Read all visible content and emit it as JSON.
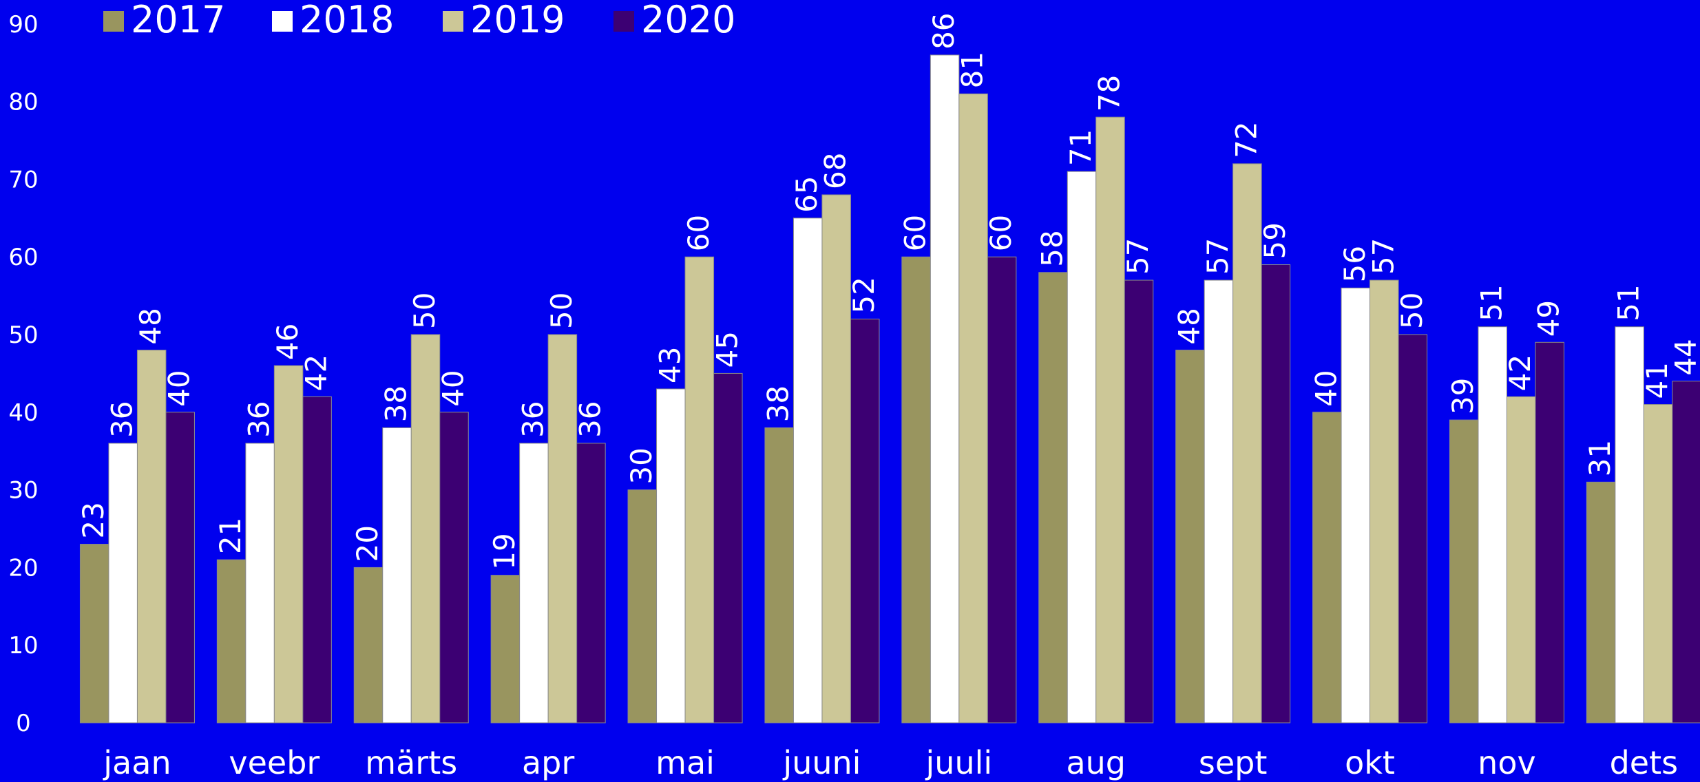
{
  "chart_data": {
    "type": "bar",
    "title": "",
    "xlabel": "",
    "ylabel": "",
    "ylim": [
      0,
      90
    ],
    "yticks": [
      0,
      10,
      20,
      30,
      40,
      50,
      60,
      70,
      80,
      90
    ],
    "grid": false,
    "legend_position": "top-left",
    "background": "#0000ee",
    "categories": [
      "jaan",
      "veebr",
      "märts",
      "apr",
      "mai",
      "juuni",
      "juuli",
      "aug",
      "sept",
      "okt",
      "nov",
      "dets"
    ],
    "series": [
      {
        "name": "2017",
        "color": "#99955f",
        "values": [
          23,
          21,
          20,
          19,
          30,
          38,
          60,
          58,
          48,
          40,
          39,
          31
        ]
      },
      {
        "name": "2018",
        "color": "#ffffff",
        "values": [
          36,
          36,
          38,
          36,
          43,
          65,
          86,
          71,
          57,
          56,
          51,
          51
        ]
      },
      {
        "name": "2019",
        "color": "#ccc797",
        "values": [
          48,
          46,
          50,
          50,
          60,
          68,
          81,
          78,
          72,
          57,
          42,
          41
        ]
      },
      {
        "name": "2020",
        "color": "#3c0073",
        "values": [
          40,
          42,
          40,
          36,
          45,
          52,
          60,
          57,
          59,
          50,
          49,
          44
        ]
      }
    ]
  }
}
